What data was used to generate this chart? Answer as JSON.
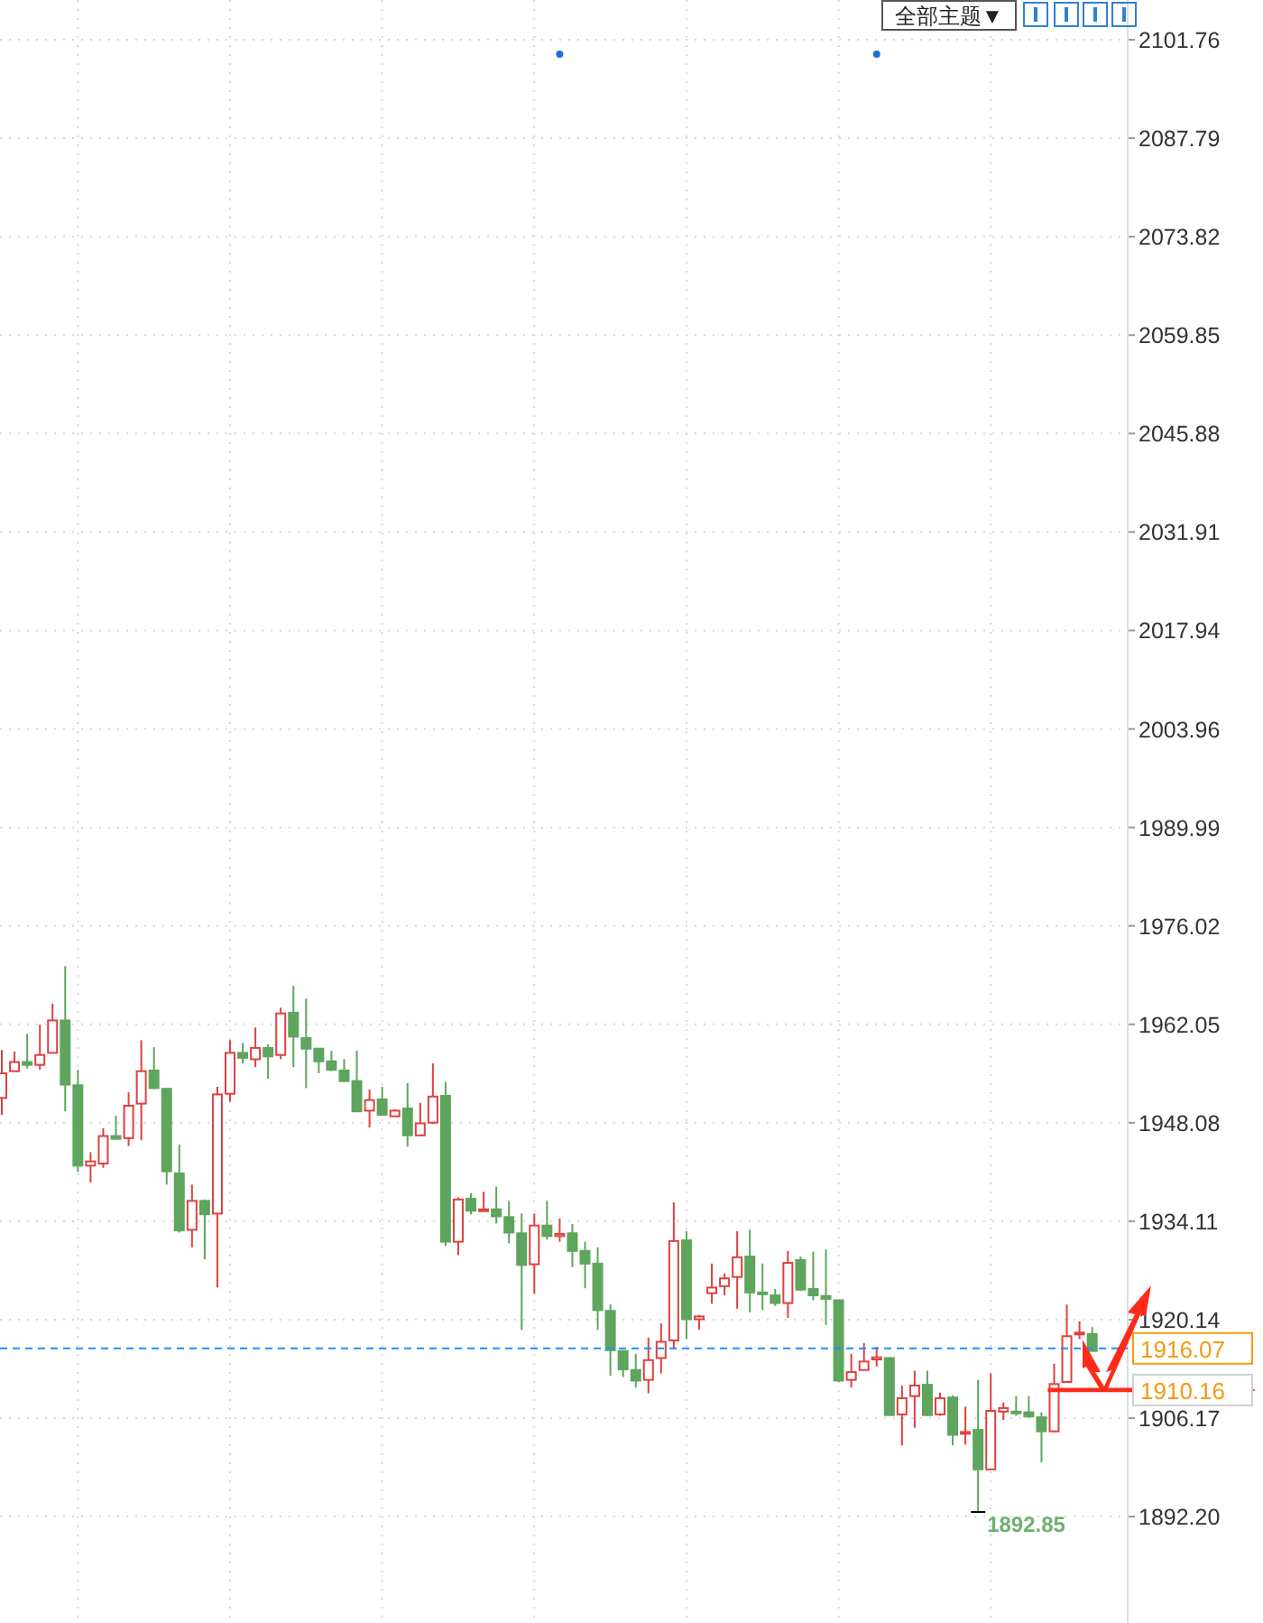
{
  "chart_data": {
    "type": "candlestick",
    "categories": [
      null,
      null,
      null,
      null,
      null,
      null,
      null,
      null,
      null,
      null,
      null,
      null,
      null,
      null,
      null,
      null,
      null,
      null,
      null,
      null,
      null,
      null,
      null,
      null,
      null,
      null,
      null,
      null,
      null,
      null,
      null,
      null,
      null,
      null,
      null,
      null,
      null,
      null,
      null,
      null,
      null,
      null,
      null,
      null,
      null,
      null,
      null,
      null,
      null,
      null,
      null,
      null,
      null,
      null,
      null,
      null,
      null,
      null,
      null,
      null,
      null,
      null,
      null,
      null,
      null,
      null,
      null,
      null,
      null,
      null,
      null,
      null,
      null,
      null,
      null,
      null,
      null,
      null,
      null,
      null,
      null,
      null,
      null,
      null,
      null,
      null,
      null
    ],
    "ohlc": [
      [
        1951.6,
        1958.4,
        1949.2,
        1955.1
      ],
      [
        1955.4,
        1958.2,
        1955.4,
        1956.7
      ],
      [
        1956.7,
        1960.7,
        1955.8,
        1956.3
      ],
      [
        1956.3,
        1962.0,
        1955.6,
        1957.7
      ],
      [
        1958.0,
        1965.0,
        1958.0,
        1962.6
      ],
      [
        1962.6,
        1970.3,
        1949.7,
        1953.5
      ],
      [
        1953.4,
        1955.6,
        1941.1,
        1942.0
      ],
      [
        1942.0,
        1943.9,
        1939.6,
        1942.6
      ],
      [
        1942.3,
        1947.3,
        1941.7,
        1946.2
      ],
      [
        1946.2,
        1949.1,
        1945.8,
        1945.8
      ],
      [
        1945.9,
        1952.4,
        1944.8,
        1950.5
      ],
      [
        1950.8,
        1959.8,
        1945.6,
        1955.4
      ],
      [
        1955.5,
        1958.8,
        1952.9,
        1953.0
      ],
      [
        1952.9,
        1953.0,
        1939.3,
        1941.2
      ],
      [
        1940.9,
        1945.0,
        1932.5,
        1932.8
      ],
      [
        1932.9,
        1939.3,
        1930.4,
        1937.0
      ],
      [
        1937.0,
        1937.2,
        1928.7,
        1935.1
      ],
      [
        1935.2,
        1953.2,
        1924.7,
        1952.1
      ],
      [
        1952.2,
        1959.8,
        1951.1,
        1958.0
      ],
      [
        1958.0,
        1959.4,
        1956.5,
        1957.3
      ],
      [
        1957.1,
        1961.6,
        1956.0,
        1958.7
      ],
      [
        1958.7,
        1959.2,
        1954.3,
        1957.5
      ],
      [
        1957.7,
        1964.4,
        1957.1,
        1963.6
      ],
      [
        1963.7,
        1967.5,
        1956.0,
        1960.3
      ],
      [
        1960.1,
        1965.7,
        1953.0,
        1958.6
      ],
      [
        1958.6,
        1958.6,
        1955.1,
        1956.8
      ],
      [
        1956.8,
        1958.3,
        1955.4,
        1955.6
      ],
      [
        1955.5,
        1957.1,
        1953.9,
        1954.0
      ],
      [
        1954.0,
        1958.3,
        1949.7,
        1949.7
      ],
      [
        1949.8,
        1952.8,
        1947.4,
        1951.3
      ],
      [
        1951.4,
        1953.2,
        1949.2,
        1949.2
      ],
      [
        1949.0,
        1950.0,
        1949.0,
        1949.8
      ],
      [
        1950.1,
        1953.7,
        1944.7,
        1946.3
      ],
      [
        1946.3,
        1950.9,
        1946.2,
        1948.0
      ],
      [
        1948.1,
        1956.5,
        1947.9,
        1951.8
      ],
      [
        1951.9,
        1953.9,
        1930.6,
        1931.2
      ],
      [
        1931.2,
        1937.5,
        1929.3,
        1937.2
      ],
      [
        1937.3,
        1938.1,
        1935.1,
        1935.6
      ],
      [
        1935.6,
        1938.3,
        1935.6,
        1935.8
      ],
      [
        1935.8,
        1939.0,
        1933.8,
        1934.8
      ],
      [
        1934.7,
        1937.0,
        1931.0,
        1932.5
      ],
      [
        1932.4,
        1935.2,
        1918.7,
        1927.9
      ],
      [
        1928.0,
        1935.2,
        1923.8,
        1933.5
      ],
      [
        1933.5,
        1937.0,
        1931.5,
        1932.0
      ],
      [
        1932.0,
        1934.5,
        1931.2,
        1932.3
      ],
      [
        1932.4,
        1933.7,
        1927.6,
        1929.9
      ],
      [
        1929.9,
        1931.2,
        1924.6,
        1928.1
      ],
      [
        1928.1,
        1930.4,
        1918.7,
        1921.5
      ],
      [
        1921.4,
        1922.3,
        1912.2,
        1915.8
      ],
      [
        1915.7,
        1915.8,
        1912.0,
        1913.1
      ],
      [
        1913.0,
        1915.3,
        1910.5,
        1911.5
      ],
      [
        1911.6,
        1917.6,
        1909.7,
        1914.4
      ],
      [
        1914.7,
        1919.6,
        1912.5,
        1917.0
      ],
      [
        1917.2,
        1936.8,
        1916.1,
        1931.3
      ],
      [
        1931.4,
        1932.7,
        1917.4,
        1920.2
      ],
      [
        1920.2,
        1920.8,
        1918.7,
        1920.6
      ],
      [
        1923.9,
        1928.1,
        1922.4,
        1924.7
      ],
      [
        1924.9,
        1926.7,
        1923.6,
        1926.0
      ],
      [
        1926.2,
        1932.7,
        1921.7,
        1929.0
      ],
      [
        1929.1,
        1932.9,
        1921.2,
        1924.0
      ],
      [
        1924.0,
        1928.1,
        1921.5,
        1923.8
      ],
      [
        1923.6,
        1924.5,
        1922.1,
        1922.5
      ],
      [
        1922.5,
        1929.9,
        1920.4,
        1928.2
      ],
      [
        1928.6,
        1929.1,
        1924.2,
        1924.4
      ],
      [
        1924.5,
        1929.8,
        1922.9,
        1923.6
      ],
      [
        1923.5,
        1930.1,
        1919.4,
        1923.1
      ],
      [
        1922.9,
        1922.9,
        1911.3,
        1911.5
      ],
      [
        1911.6,
        1915.3,
        1910.5,
        1912.7
      ],
      [
        1913.0,
        1916.8,
        1913.0,
        1914.2
      ],
      [
        1914.5,
        1916.3,
        1913.5,
        1914.8
      ],
      [
        1914.7,
        1914.7,
        1906.6,
        1906.6
      ],
      [
        1906.7,
        1910.8,
        1902.3,
        1909.0
      ],
      [
        1909.3,
        1912.9,
        1904.8,
        1910.8
      ],
      [
        1910.9,
        1912.9,
        1906.5,
        1906.6
      ],
      [
        1906.7,
        1909.8,
        1906.5,
        1909.0
      ],
      [
        1909.1,
        1909.4,
        1902.3,
        1903.8
      ],
      [
        1904.0,
        1907.8,
        1902.4,
        1904.2
      ],
      [
        1904.5,
        1911.6,
        1892.85,
        1898.9
      ],
      [
        1898.9,
        1912.5,
        1898.9,
        1907.2
      ],
      [
        1907.1,
        1908.4,
        1905.9,
        1907.6
      ],
      [
        1907.1,
        1909.3,
        1906.5,
        1907.0
      ],
      [
        1907.0,
        1909.3,
        1906.3,
        1906.4
      ],
      [
        1906.3,
        1907.0,
        1899.9,
        1904.3
      ],
      [
        1904.3,
        1913.9,
        1904.2,
        1911.0
      ],
      [
        1911.3,
        1922.3,
        1911.2,
        1917.8
      ],
      [
        1918.1,
        1919.9,
        1917.4,
        1918.3
      ],
      [
        1918.1,
        1919.1,
        1915.7,
        1915.7
      ]
    ],
    "colors": [
      "#e04040",
      "#e04040",
      "#5ea55e",
      "#e04040",
      "#e04040",
      "#5ea55e",
      "#5ea55e",
      "#e04040",
      "#e04040",
      "#5ea55e",
      "#e04040",
      "#e04040",
      "#5ea55e",
      "#5ea55e",
      "#5ea55e",
      "#e04040",
      "#5ea55e",
      "#e04040",
      "#e04040",
      "#5ea55e",
      "#e04040",
      "#5ea55e",
      "#e04040",
      "#5ea55e",
      "#5ea55e",
      "#5ea55e",
      "#5ea55e",
      "#5ea55e",
      "#5ea55e",
      "#e04040",
      "#5ea55e",
      "#e04040",
      "#5ea55e",
      "#e04040",
      "#e04040",
      "#5ea55e",
      "#e04040",
      "#5ea55e",
      "#e04040",
      "#5ea55e",
      "#5ea55e",
      "#5ea55e",
      "#e04040",
      "#5ea55e",
      "#e04040",
      "#5ea55e",
      "#5ea55e",
      "#5ea55e",
      "#5ea55e",
      "#5ea55e",
      "#5ea55e",
      "#e04040",
      "#e04040",
      "#e04040",
      "#5ea55e",
      "#e04040",
      "#e04040",
      "#e04040",
      "#e04040",
      "#5ea55e",
      "#5ea55e",
      "#5ea55e",
      "#e04040",
      "#5ea55e",
      "#5ea55e",
      "#5ea55e",
      "#5ea55e",
      "#e04040",
      "#e04040",
      "#e04040",
      "#5ea55e",
      "#e04040",
      "#e04040",
      "#5ea55e",
      "#e04040",
      "#5ea55e",
      "#e04040",
      "#5ea55e",
      "#e04040",
      "#e04040",
      "#5ea55e",
      "#5ea55e",
      "#5ea55e",
      "#e04040",
      "#e04040",
      "#e04040",
      "#5ea55e"
    ],
    "series": [
      {
        "type": "scatter",
        "marker": "circle",
        "color": "#1f6fd1",
        "values": [
          null,
          null,
          null,
          null,
          null,
          null,
          null,
          null,
          null,
          null,
          null,
          null,
          null,
          null,
          null,
          null,
          null,
          null,
          null,
          null,
          null,
          null,
          null,
          null,
          null,
          null,
          null,
          null,
          null,
          null,
          null,
          null,
          null,
          null,
          null,
          null,
          null,
          null,
          null,
          null,
          null,
          null,
          null,
          null,
          2099.7,
          null,
          null,
          null,
          null,
          null,
          null,
          null,
          null,
          null,
          null,
          null,
          null,
          null,
          null,
          null,
          null,
          null,
          null,
          null,
          null,
          null,
          null,
          null,
          null,
          2099.7,
          null,
          null,
          null,
          null,
          null,
          null,
          null,
          null,
          null,
          null,
          null,
          null,
          null,
          null,
          null,
          null,
          null
        ]
      }
    ],
    "ylim": [
      1877.1,
      2107.4
    ],
    "yticks": [
      {
        "value": 1892.2,
        "label": "1892.20"
      },
      1906.17,
      1920.14,
      1934.11,
      1948.08,
      1962.05,
      1976.02,
      1989.99,
      2003.96,
      2017.94,
      2031.91,
      2045.88,
      2059.85,
      2073.82,
      2087.79,
      2101.76
    ],
    "ref_lines": [
      {
        "axis": "y",
        "value": 1916.07,
        "label": "1916.07",
        "color": "#1e8fff",
        "line_style": "dashed"
      },
      {
        "axis": "y",
        "value": 1910.16,
        "label": "1910.16",
        "color": "#ff2a1a",
        "line_style": "solid"
      }
    ],
    "annotations": [
      "全部主题▼",
      "1892.85"
    ],
    "grid": true,
    "tick_labels": "y"
  }
}
